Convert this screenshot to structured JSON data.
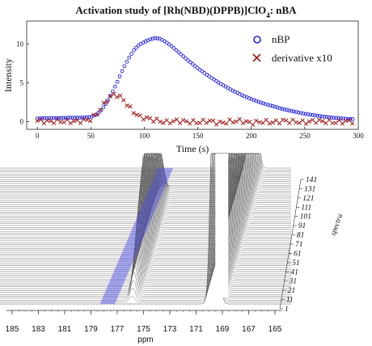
{
  "chart_data": [
    {
      "type": "scatter",
      "title_parts": [
        "Activation study of [Rh(NBD)(DPPB)]ClO",
        "4",
        ": nBA"
      ],
      "xlabel": "Time (s)",
      "ylabel": "Intensity",
      "xlim": [
        -10,
        300
      ],
      "ylim": [
        -1,
        13
      ],
      "xticks": [
        "0",
        "50",
        "100",
        "150",
        "200",
        "250",
        "300"
      ],
      "yticks": [
        "0",
        "5",
        "10"
      ],
      "legend_position": "top-right",
      "series": [
        {
          "name": "nBP",
          "marker": "circle",
          "color": "#2222dd",
          "x": [
            0,
            10,
            20,
            30,
            40,
            50,
            55,
            60,
            65,
            70,
            75,
            80,
            85,
            90,
            95,
            100,
            105,
            110,
            115,
            120,
            125,
            130,
            140,
            150,
            160,
            170,
            180,
            190,
            200,
            210,
            220,
            230,
            240,
            250,
            260,
            270,
            280,
            290,
            296
          ],
          "y": [
            0.4,
            0.45,
            0.45,
            0.5,
            0.5,
            0.6,
            0.9,
            1.5,
            2.5,
            3.8,
            5.2,
            6.8,
            8.1,
            9.2,
            9.9,
            10.3,
            10.6,
            10.8,
            10.7,
            10.3,
            9.8,
            9.2,
            8.0,
            6.9,
            5.9,
            5.0,
            4.2,
            3.5,
            2.9,
            2.4,
            2.0,
            1.6,
            1.3,
            1.0,
            0.8,
            0.6,
            0.45,
            0.35,
            0.3
          ]
        },
        {
          "name": "derivative x10",
          "marker": "x",
          "color": "#a01818",
          "x": [
            0,
            10,
            20,
            30,
            40,
            50,
            55,
            60,
            65,
            70,
            73,
            76,
            80,
            84,
            88,
            92,
            96,
            100,
            110,
            120,
            130,
            140,
            150,
            160,
            170,
            180,
            190,
            200,
            210,
            220,
            230,
            240,
            250,
            260,
            270,
            280,
            290,
            296
          ],
          "y": [
            0.1,
            0.0,
            0.05,
            0.0,
            0.05,
            0.3,
            0.9,
            1.8,
            2.8,
            3.4,
            3.5,
            3.3,
            2.9,
            2.2,
            1.5,
            1.0,
            0.6,
            0.5,
            0.2,
            -0.1,
            0.1,
            0.0,
            -0.1,
            0.1,
            -0.2,
            0.0,
            0.1,
            -0.2,
            0.0,
            -0.1,
            0.1,
            0.0,
            -0.1,
            0.1,
            0.0,
            -0.1,
            0.05,
            0.0
          ]
        }
      ]
    },
    {
      "type": "waterfall",
      "xlabel": "ppm",
      "zlabel": "spectra",
      "xlim": [
        185,
        165
      ],
      "xticks": [
        "185",
        "183",
        "181",
        "179",
        "177",
        "175",
        "173",
        "171",
        "169",
        "167",
        "165"
      ],
      "spectra_ticks": [
        "1",
        "11",
        "21",
        "31",
        "41",
        "51",
        "61",
        "71",
        "81",
        "91",
        "101",
        "111",
        "121",
        "131",
        "141"
      ],
      "peaks_ppm": [
        175.9,
        169.6
      ],
      "highlight_band_ppm": [
        178.3,
        177.2
      ],
      "highlight_color": "#4a4ae8",
      "line_color": "#555555"
    }
  ]
}
